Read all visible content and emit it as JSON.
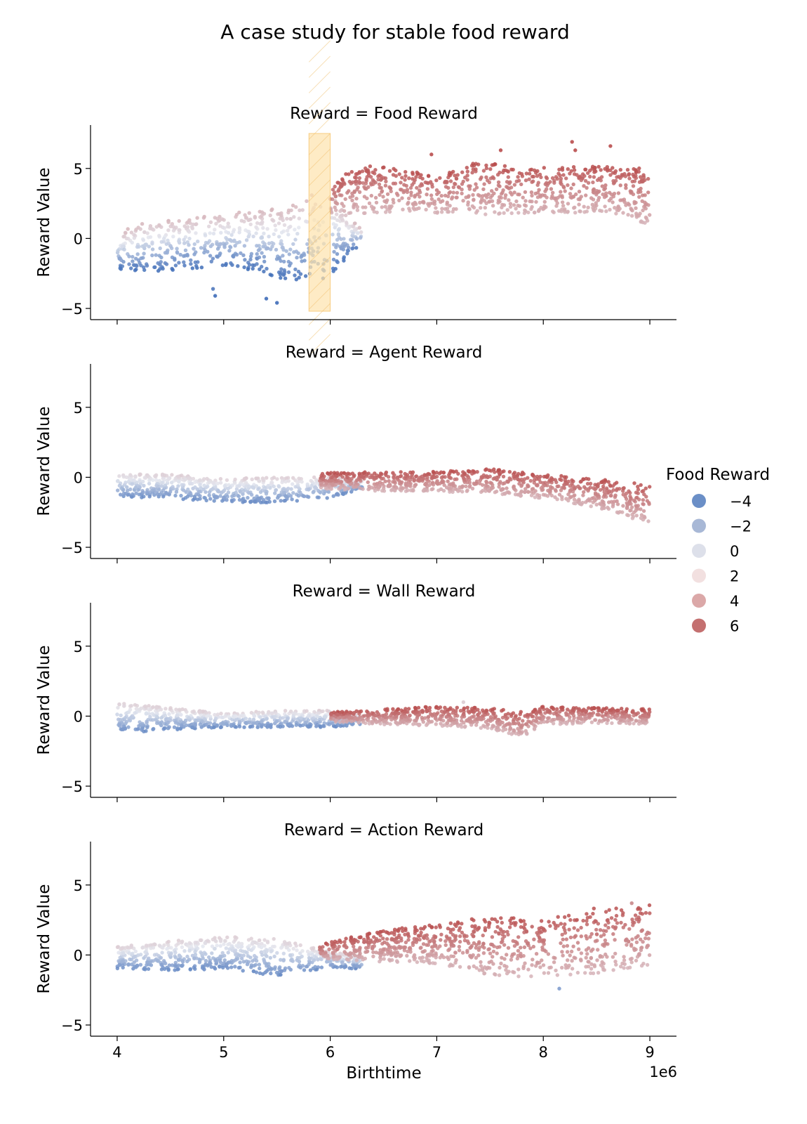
{
  "figure": {
    "title": "A case study for stable food reward",
    "xlabel": "Birthtime",
    "x_offset_label": "1e6",
    "ylabel": "Reward Value"
  },
  "legend": {
    "title": "Food Reward",
    "placement": "right",
    "entries": [
      {
        "label": "−4",
        "value": -4,
        "color": "#6b8fc7"
      },
      {
        "label": "−2",
        "value": -2,
        "color": "#a8b8d6"
      },
      {
        "label": "0",
        "value": 0,
        "color": "#dde0ea"
      },
      {
        "label": "2",
        "value": 2,
        "color": "#f2e0e0"
      },
      {
        "label": "4",
        "value": 4,
        "color": "#dba8a8"
      },
      {
        "label": "6",
        "value": 6,
        "color": "#c47070"
      }
    ]
  },
  "colors": {
    "negative": "#3f6db8",
    "neutral": "#e4e6ee",
    "positive": "#b94e4e",
    "highlight": "#fde3ad"
  },
  "chart_data": {
    "type": "scatter",
    "x_ticks": [
      4,
      5,
      6,
      7,
      8,
      9
    ],
    "x_tick_labels": [
      "4",
      "5",
      "6",
      "7",
      "8",
      "9"
    ],
    "y_ticks": [
      -5,
      0,
      5
    ],
    "y_tick_labels": [
      "−5",
      "0",
      "5"
    ],
    "xlim": [
      3.75,
      9.25
    ],
    "ylim": [
      -5.8,
      8.1
    ],
    "highlight_region": {
      "x": [
        5.8,
        6.0
      ],
      "y": [
        -5.2,
        7.5
      ]
    },
    "panels": [
      {
        "title": "Reward = Food Reward",
        "series": [
          {
            "x": [
              4.0,
              4.3,
              4.6,
              5.0,
              5.3,
              5.6,
              5.85,
              5.95,
              6.3
            ],
            "lo": [
              -2.3,
              -2.4,
              -2.2,
              -2.0,
              -2.3,
              -3.0,
              -2.8,
              -3.0,
              -0.3
            ],
            "hi": [
              0.4,
              1.3,
              1.4,
              1.8,
              2.0,
              2.2,
              3.2,
              3.5,
              0.6
            ],
            "food_lo": -4,
            "food_hi": 2
          },
          {
            "x": [
              6.0,
              6.3,
              6.6,
              7.0,
              7.4,
              7.8,
              8.2,
              8.6,
              9.0
            ],
            "lo": [
              1.8,
              1.8,
              1.8,
              1.8,
              1.7,
              1.8,
              1.8,
              1.8,
              1.0
            ],
            "hi": [
              4.0,
              5.3,
              5.0,
              4.5,
              5.5,
              5.0,
              5.1,
              5.2,
              5.0
            ],
            "food_lo": 2,
            "food_hi": 6
          }
        ],
        "outliers": [
          {
            "x": 4.9,
            "y": -3.6
          },
          {
            "x": 4.92,
            "y": -4.1
          },
          {
            "x": 5.5,
            "y": -4.6
          },
          {
            "x": 5.4,
            "y": -4.3
          },
          {
            "x": 7.6,
            "y": 6.3
          },
          {
            "x": 8.27,
            "y": 6.9
          },
          {
            "x": 8.63,
            "y": 6.6
          },
          {
            "x": 8.3,
            "y": 6.3
          },
          {
            "x": 6.95,
            "y": 6.0
          }
        ]
      },
      {
        "title": "Reward = Agent Reward",
        "series": [
          {
            "x": [
              4.0,
              4.5,
              5.0,
              5.5,
              6.0,
              6.3
            ],
            "lo": [
              -1.4,
              -1.5,
              -1.8,
              -1.8,
              -1.5,
              -0.8
            ],
            "hi": [
              0.3,
              0.2,
              -0.1,
              0.0,
              0.0,
              -0.2
            ],
            "food_lo": -3,
            "food_hi": 1
          },
          {
            "x": [
              5.9,
              6.5,
              7.0,
              7.5,
              8.0,
              8.5,
              9.0
            ],
            "lo": [
              -0.8,
              -1.0,
              -1.0,
              -1.2,
              -1.5,
              -2.2,
              -3.3
            ],
            "hi": [
              0.3,
              0.4,
              0.4,
              0.6,
              0.2,
              -0.1,
              -0.5
            ],
            "food_lo": 2,
            "food_hi": 6
          }
        ],
        "outliers": []
      },
      {
        "title": "Reward = Wall Reward",
        "series": [
          {
            "x": [
              4.0,
              4.5,
              5.0,
              5.5,
              6.0,
              6.3
            ],
            "lo": [
              -1.2,
              -1.0,
              -0.8,
              -0.8,
              -0.8,
              -0.6
            ],
            "hi": [
              1.0,
              0.6,
              0.2,
              0.4,
              0.4,
              0.1
            ],
            "food_lo": -3,
            "food_hi": 1
          },
          {
            "x": [
              6.0,
              6.5,
              7.0,
              7.5,
              7.8,
              8.0,
              8.5,
              9.0
            ],
            "lo": [
              -0.4,
              -0.6,
              -0.7,
              -0.9,
              -1.5,
              -0.6,
              -0.5,
              -0.6
            ],
            "hi": [
              0.3,
              0.5,
              0.7,
              0.6,
              0.3,
              0.7,
              0.6,
              0.5
            ],
            "food_lo": 2,
            "food_hi": 6
          }
        ],
        "outliers": [
          {
            "x": 7.25,
            "y": 1.0
          }
        ]
      },
      {
        "title": "Reward = Action Reward",
        "series": [
          {
            "x": [
              4.0,
              4.5,
              5.0,
              5.5,
              6.0,
              6.3
            ],
            "lo": [
              -1.0,
              -1.1,
              -1.0,
              -1.5,
              -0.9,
              -1.0
            ],
            "hi": [
              0.6,
              1.0,
              1.3,
              1.2,
              0.2,
              0.0
            ],
            "food_lo": -3,
            "food_hi": 1
          },
          {
            "x": [
              5.9,
              6.5,
              7.0,
              7.5,
              8.0,
              8.5,
              9.0
            ],
            "lo": [
              -0.3,
              -0.5,
              -0.6,
              -1.6,
              -1.5,
              -1.3,
              -0.7
            ],
            "hi": [
              0.8,
              1.8,
              2.2,
              2.8,
              2.6,
              3.4,
              3.6
            ],
            "food_lo": 2,
            "food_hi": 6
          }
        ],
        "outliers": [
          {
            "x": 8.15,
            "y": -2.4
          },
          {
            "x": 8.83,
            "y": 3.7
          }
        ]
      }
    ]
  }
}
